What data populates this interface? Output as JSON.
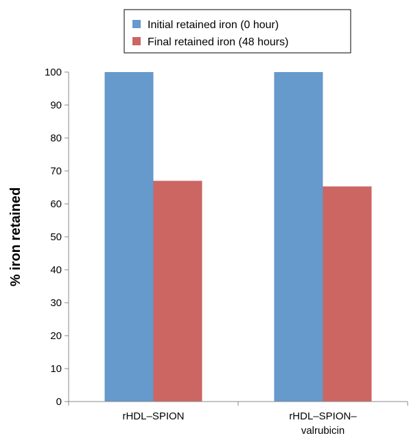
{
  "chart_data": {
    "type": "bar",
    "categories": [
      "rHDL–SPION",
      "rHDL–SPION– valrubicin"
    ],
    "series": [
      {
        "name": "Initial retained iron (0 hour)",
        "values": [
          100,
          100
        ],
        "color": "#6699cc"
      },
      {
        "name": "Final retained iron (48 hours)",
        "values": [
          67,
          65.3
        ],
        "color": "#cc6662"
      }
    ],
    "title": "",
    "xlabel": "",
    "ylabel": "% iron retained",
    "ylim": [
      0,
      100
    ],
    "yticks": [
      0,
      10,
      20,
      30,
      40,
      50,
      60,
      70,
      80,
      90,
      100
    ],
    "grid": false,
    "legend_position": "top"
  }
}
